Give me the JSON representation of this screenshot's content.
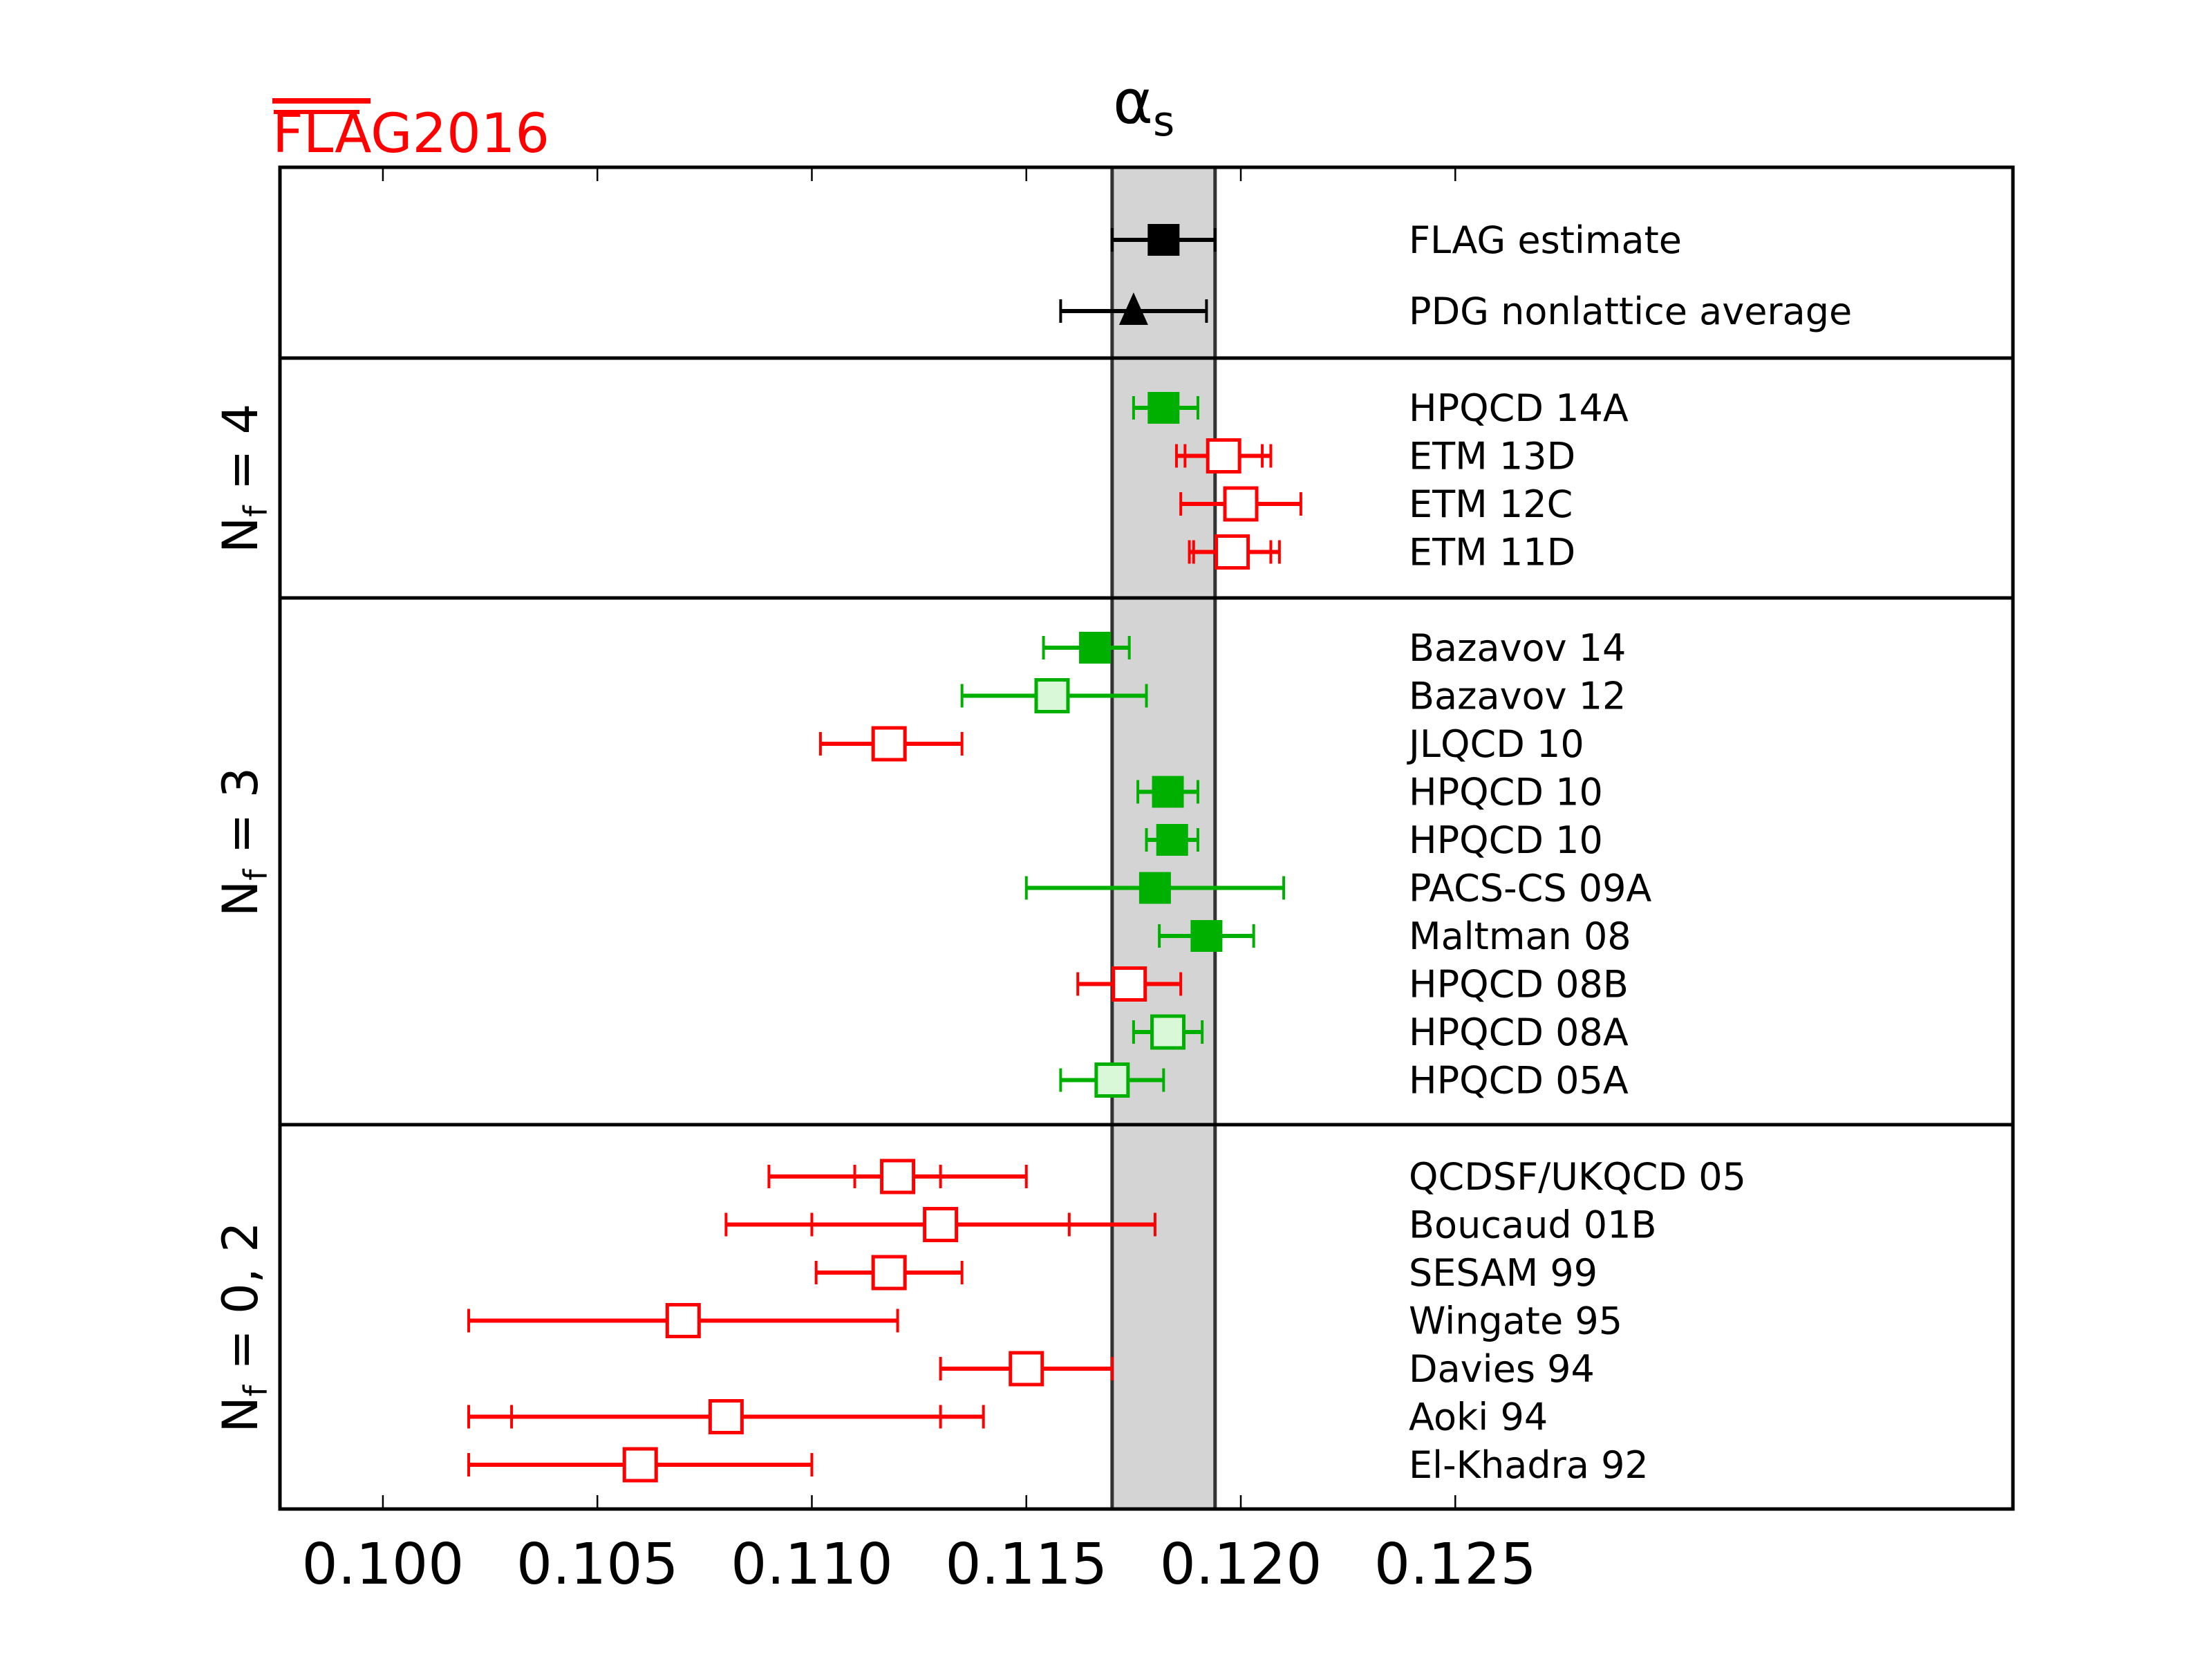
{
  "chart_data": {
    "type": "scatter",
    "title": "αs",
    "title_main": "α",
    "title_sub": "s",
    "logo": {
      "text_overline": "FLA",
      "text_rest": "G2016",
      "color": "#ff0000"
    },
    "xlim": [
      0.0976,
      0.138
    ],
    "xticks": [
      0.1,
      0.105,
      0.11,
      0.115,
      0.12,
      0.125
    ],
    "xtick_labels": [
      "0.100",
      "0.105",
      "0.110",
      "0.115",
      "0.120",
      "0.125"
    ],
    "band": {
      "lo": 0.117,
      "hi": 0.1194,
      "color": "#d4d4d4"
    },
    "colors": {
      "green": "#00b000",
      "light_green_fill": "#d8f8d8",
      "red": "#ff0000",
      "black": "#000000"
    },
    "panels": [
      {
        "label": "",
        "rows": [
          {
            "name": "FLAG estimate",
            "value": 0.1182,
            "lo": 0.117,
            "hi": 0.1194,
            "marker": "square",
            "style": "black"
          },
          {
            "name": "PDG nonlattice average",
            "value": 0.1175,
            "lo": 0.1158,
            "hi": 0.1192,
            "marker": "triangle",
            "style": "black"
          }
        ]
      },
      {
        "label_main": "N",
        "label_sub": "f",
        "label_rest": " = 4",
        "rows": [
          {
            "name": "HPQCD 14A",
            "value": 0.1182,
            "lo": 0.1175,
            "hi": 0.119,
            "marker": "square",
            "style": "green"
          },
          {
            "name": "ETM 13D",
            "value": 0.1196,
            "lo": 0.1185,
            "hi": 0.1207,
            "lo_inner": 0.1187,
            "hi_inner": 0.1205,
            "marker": "square",
            "style": "red"
          },
          {
            "name": "ETM 12C",
            "value": 0.12,
            "lo": 0.1186,
            "hi": 0.1214,
            "marker": "square",
            "style": "red"
          },
          {
            "name": "ETM 11D",
            "value": 0.1198,
            "lo": 0.1188,
            "hi": 0.1209,
            "lo_inner": 0.1189,
            "hi_inner": 0.1207,
            "marker": "square",
            "style": "red"
          }
        ]
      },
      {
        "label_main": "N",
        "label_sub": "f",
        "label_rest": " = 3",
        "rows": [
          {
            "name": "Bazavov 14",
            "value": 0.1166,
            "lo": 0.1154,
            "hi": 0.1174,
            "marker": "square",
            "style": "green"
          },
          {
            "name": "Bazavov 12",
            "value": 0.1156,
            "lo": 0.1135,
            "hi": 0.1178,
            "marker": "square",
            "style": "lightgreen"
          },
          {
            "name": "JLQCD 10",
            "value": 0.1118,
            "lo": 0.1102,
            "hi": 0.1135,
            "marker": "square",
            "style": "red"
          },
          {
            "name": "HPQCD 10",
            "value": 0.1183,
            "lo": 0.1176,
            "hi": 0.119,
            "marker": "square",
            "style": "green"
          },
          {
            "name": "HPQCD 10",
            "value": 0.1184,
            "lo": 0.1178,
            "hi": 0.119,
            "marker": "square",
            "style": "green"
          },
          {
            "name": "PACS-CS 09A",
            "value": 0.118,
            "lo": 0.115,
            "hi": 0.121,
            "marker": "square",
            "style": "green"
          },
          {
            "name": "Maltman 08",
            "value": 0.1192,
            "lo": 0.1181,
            "hi": 0.1203,
            "marker": "square",
            "style": "green"
          },
          {
            "name": "HPQCD 08B",
            "value": 0.1174,
            "lo": 0.1162,
            "hi": 0.1186,
            "marker": "square",
            "style": "red"
          },
          {
            "name": "HPQCD 08A",
            "value": 0.1183,
            "lo": 0.1175,
            "hi": 0.1191,
            "marker": "square",
            "style": "lightgreen"
          },
          {
            "name": "HPQCD 05A",
            "value": 0.117,
            "lo": 0.1158,
            "hi": 0.1182,
            "marker": "square",
            "style": "lightgreen"
          }
        ]
      },
      {
        "label_main": "N",
        "label_sub": "f",
        "label_rest": " = 0, 2",
        "rows": [
          {
            "name": "QCDSF/UKQCD 05",
            "value": 0.112,
            "lo": 0.109,
            "hi": 0.115,
            "lo_inner": 0.111,
            "hi_inner": 0.113,
            "marker": "square",
            "style": "red"
          },
          {
            "name": "Boucaud 01B",
            "value": 0.113,
            "lo": 0.108,
            "hi": 0.118,
            "lo_inner": 0.11,
            "hi_inner": 0.116,
            "marker": "square",
            "style": "red"
          },
          {
            "name": "SESAM 99",
            "value": 0.1118,
            "lo": 0.1101,
            "hi": 0.1135,
            "marker": "square",
            "style": "red"
          },
          {
            "name": "Wingate 95",
            "value": 0.107,
            "lo": 0.102,
            "hi": 0.112,
            "marker": "square",
            "style": "red"
          },
          {
            "name": "Davies 94",
            "value": 0.115,
            "lo": 0.113,
            "hi": 0.117,
            "marker": "square",
            "style": "red"
          },
          {
            "name": "Aoki 94",
            "value": 0.108,
            "lo": 0.102,
            "hi": 0.114,
            "lo_inner": 0.103,
            "hi_inner": 0.113,
            "marker": "square",
            "style": "red"
          },
          {
            "name": "El-Khadra 92",
            "value": 0.106,
            "lo": 0.102,
            "hi": 0.11,
            "marker": "square",
            "style": "red"
          }
        ]
      }
    ]
  }
}
